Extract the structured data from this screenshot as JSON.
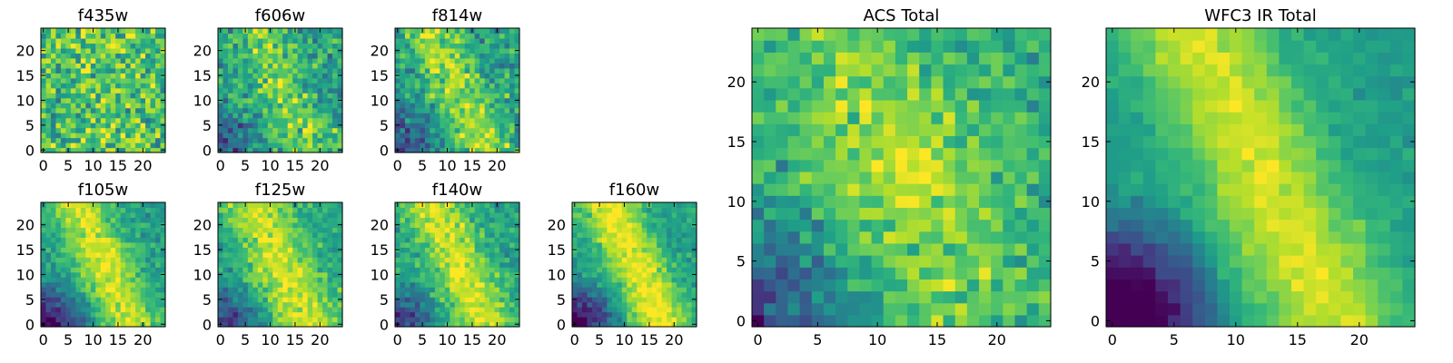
{
  "chart_data": [
    {
      "type": "heatmap",
      "title": "f435w",
      "grid": false,
      "x_ticks": [
        0,
        5,
        10,
        15,
        20
      ],
      "y_ticks": [
        0,
        5,
        10,
        15,
        20
      ],
      "xlim": [
        -0.5,
        24.5
      ],
      "ylim": [
        -0.5,
        24.5
      ],
      "z": "25x25 pixel image",
      "colormap": "viridis",
      "feature": "noisy, no strong structure"
    },
    {
      "type": "heatmap",
      "title": "f606w",
      "grid": false,
      "x_ticks": [
        0,
        5,
        10,
        15,
        20
      ],
      "y_ticks": [
        0,
        5,
        10,
        15,
        20
      ],
      "xlim": [
        -0.5,
        24.5
      ],
      "ylim": [
        -0.5,
        24.5
      ],
      "z": "25x25 pixel image",
      "colormap": "viridis",
      "feature": "faint diagonal bright band"
    },
    {
      "type": "heatmap",
      "title": "f814w",
      "grid": false,
      "x_ticks": [
        0,
        5,
        10,
        15,
        20
      ],
      "y_ticks": [
        0,
        5,
        10,
        15,
        20
      ],
      "xlim": [
        -0.5,
        24.5
      ],
      "ylim": [
        -0.5,
        24.5
      ],
      "z": "25x25 pixel image",
      "colormap": "viridis",
      "feature": "diagonal bright band"
    },
    {
      "type": "heatmap",
      "title": "f105w",
      "grid": false,
      "x_ticks": [
        0,
        5,
        10,
        15,
        20
      ],
      "y_ticks": [
        0,
        5,
        10,
        15,
        20
      ],
      "xlim": [
        -0.5,
        24.5
      ],
      "ylim": [
        -0.5,
        24.5
      ],
      "z": "25x25 pixel image",
      "colormap": "viridis",
      "feature": "diagonal bright band, dark lower-left"
    },
    {
      "type": "heatmap",
      "title": "f125w",
      "grid": false,
      "x_ticks": [
        0,
        5,
        10,
        15,
        20
      ],
      "y_ticks": [
        0,
        5,
        10,
        15,
        20
      ],
      "xlim": [
        -0.5,
        24.5
      ],
      "ylim": [
        -0.5,
        24.5
      ],
      "z": "25x25 pixel image",
      "colormap": "viridis",
      "feature": "diagonal bright band"
    },
    {
      "type": "heatmap",
      "title": "f140w",
      "grid": false,
      "x_ticks": [
        0,
        5,
        10,
        15,
        20
      ],
      "y_ticks": [
        0,
        5,
        10,
        15,
        20
      ],
      "xlim": [
        -0.5,
        24.5
      ],
      "ylim": [
        -0.5,
        24.5
      ],
      "z": "25x25 pixel image",
      "colormap": "viridis",
      "feature": "diagonal bright band"
    },
    {
      "type": "heatmap",
      "title": "f160w",
      "grid": false,
      "x_ticks": [
        0,
        5,
        10,
        15,
        20
      ],
      "y_ticks": [
        0,
        5,
        10,
        15,
        20
      ],
      "xlim": [
        -0.5,
        24.5
      ],
      "ylim": [
        -0.5,
        24.5
      ],
      "z": "25x25 pixel image",
      "colormap": "viridis",
      "feature": "strong diagonal bright band, dark lower-left"
    },
    {
      "type": "heatmap",
      "title": "ACS Total",
      "grid": false,
      "x_ticks": [
        0,
        5,
        10,
        15,
        20
      ],
      "y_ticks": [
        0,
        5,
        10,
        15,
        20
      ],
      "xlim": [
        -0.5,
        24.5
      ],
      "ylim": [
        -0.5,
        24.5
      ],
      "z": "25x25 pixel image",
      "colormap": "viridis",
      "feature": "noisy, bright center, dark lower-left"
    },
    {
      "type": "heatmap",
      "title": "WFC3 IR Total",
      "grid": false,
      "x_ticks": [
        0,
        5,
        10,
        15,
        20
      ],
      "y_ticks": [
        0,
        5,
        10,
        15,
        20
      ],
      "xlim": [
        -0.5,
        24.5
      ],
      "ylim": [
        -0.5,
        24.5
      ],
      "z": "25x25 pixel image",
      "colormap": "viridis",
      "feature": "smooth diagonal bright band, very dark lower-left"
    }
  ]
}
